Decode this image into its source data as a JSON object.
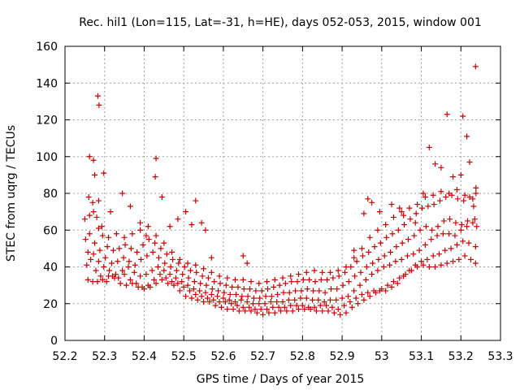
{
  "chart_data": {
    "type": "scatter",
    "title": "Rec. hil1 (Lon=115, Lat=-31, h=HE), days 052-053, 2015, window 001",
    "xlabel": "GPS time / Days of year 2015",
    "ylabel": "STEC from uqrg / TECUs",
    "xlim": [
      52.2,
      53.3
    ],
    "ylim": [
      0,
      160
    ],
    "xticks": [
      "52.2",
      "52.3",
      "52.4",
      "52.5",
      "52.6",
      "52.7",
      "52.8",
      "52.9",
      "53",
      "53.1",
      "53.2",
      "53.3"
    ],
    "yticks": [
      "0",
      "20",
      "40",
      "60",
      "80",
      "100",
      "120",
      "140",
      "160"
    ],
    "grid": true,
    "marker": "+",
    "color": "#cc0000",
    "points": [
      [
        52.258,
        33
      ],
      [
        52.27,
        32
      ],
      [
        52.282,
        32
      ],
      [
        52.295,
        33
      ],
      [
        52.31,
        35
      ],
      [
        52.325,
        34
      ],
      [
        52.34,
        31
      ],
      [
        52.355,
        30
      ],
      [
        52.37,
        31
      ],
      [
        52.385,
        29
      ],
      [
        52.4,
        28
      ],
      [
        52.415,
        29
      ],
      [
        52.43,
        31
      ],
      [
        52.445,
        33
      ],
      [
        52.46,
        31
      ],
      [
        52.475,
        30
      ],
      [
        52.49,
        27
      ],
      [
        52.505,
        24
      ],
      [
        52.52,
        23
      ],
      [
        52.535,
        22
      ],
      [
        52.55,
        21
      ],
      [
        52.565,
        21
      ],
      [
        52.58,
        19
      ],
      [
        52.595,
        18
      ],
      [
        52.61,
        17
      ],
      [
        52.625,
        17
      ],
      [
        52.64,
        16
      ],
      [
        52.655,
        16
      ],
      [
        52.67,
        16
      ],
      [
        52.685,
        15
      ],
      [
        52.7,
        14
      ],
      [
        52.715,
        15
      ],
      [
        52.73,
        15
      ],
      [
        52.745,
        16
      ],
      [
        52.76,
        16
      ],
      [
        52.775,
        16
      ],
      [
        52.79,
        17
      ],
      [
        52.805,
        17
      ],
      [
        52.82,
        17
      ],
      [
        52.835,
        16
      ],
      [
        52.85,
        16
      ],
      [
        52.865,
        16
      ],
      [
        52.88,
        15
      ],
      [
        52.895,
        14
      ],
      [
        52.91,
        15
      ],
      [
        52.925,
        18
      ],
      [
        52.94,
        20
      ],
      [
        52.955,
        22
      ],
      [
        52.97,
        24
      ],
      [
        52.985,
        26
      ],
      [
        53.0,
        28
      ],
      [
        53.015,
        30
      ],
      [
        53.03,
        32
      ],
      [
        53.045,
        34
      ],
      [
        53.06,
        36
      ],
      [
        53.075,
        38
      ],
      [
        53.09,
        40
      ],
      [
        53.105,
        41
      ],
      [
        53.12,
        40
      ],
      [
        53.135,
        40
      ],
      [
        53.15,
        41
      ],
      [
        53.165,
        42
      ],
      [
        53.18,
        43
      ],
      [
        53.195,
        44
      ],
      [
        53.21,
        46
      ],
      [
        53.225,
        44
      ],
      [
        53.237,
        42
      ],
      [
        52.255,
        41
      ],
      [
        52.265,
        44
      ],
      [
        52.278,
        38
      ],
      [
        52.29,
        35
      ],
      [
        52.305,
        32
      ],
      [
        52.32,
        35
      ],
      [
        52.335,
        34
      ],
      [
        52.35,
        36
      ],
      [
        52.365,
        33
      ],
      [
        52.38,
        31
      ],
      [
        52.395,
        29
      ],
      [
        52.41,
        30
      ],
      [
        52.425,
        33
      ],
      [
        52.44,
        36
      ],
      [
        52.455,
        34
      ],
      [
        52.47,
        32
      ],
      [
        52.485,
        31
      ],
      [
        52.5,
        29
      ],
      [
        52.515,
        27
      ],
      [
        52.53,
        25
      ],
      [
        52.545,
        24
      ],
      [
        52.56,
        23
      ],
      [
        52.575,
        22
      ],
      [
        52.59,
        21
      ],
      [
        52.605,
        21
      ],
      [
        52.62,
        20
      ],
      [
        52.635,
        19
      ],
      [
        52.65,
        18
      ],
      [
        52.665,
        18
      ],
      [
        52.68,
        17
      ],
      [
        52.695,
        17
      ],
      [
        52.71,
        17
      ],
      [
        52.725,
        18
      ],
      [
        52.74,
        18
      ],
      [
        52.755,
        18
      ],
      [
        52.77,
        19
      ],
      [
        52.785,
        19
      ],
      [
        52.8,
        19
      ],
      [
        52.815,
        18
      ],
      [
        52.83,
        18
      ],
      [
        52.845,
        19
      ],
      [
        52.86,
        19
      ],
      [
        52.875,
        18
      ],
      [
        52.89,
        17
      ],
      [
        52.905,
        19
      ],
      [
        52.92,
        21
      ],
      [
        52.935,
        23
      ],
      [
        52.95,
        25
      ],
      [
        52.965,
        26
      ],
      [
        52.98,
        27
      ],
      [
        52.995,
        27
      ],
      [
        53.01,
        27
      ],
      [
        53.025,
        29
      ],
      [
        53.04,
        31
      ],
      [
        53.055,
        35
      ],
      [
        53.07,
        38
      ],
      [
        53.085,
        41
      ],
      [
        53.1,
        43
      ],
      [
        53.115,
        44
      ],
      [
        53.13,
        46
      ],
      [
        53.145,
        47
      ],
      [
        53.16,
        49
      ],
      [
        53.175,
        50
      ],
      [
        53.19,
        52
      ],
      [
        53.205,
        54
      ],
      [
        53.22,
        53
      ],
      [
        53.237,
        51
      ],
      [
        52.258,
        48
      ],
      [
        52.272,
        47
      ],
      [
        52.285,
        43
      ],
      [
        52.298,
        40
      ],
      [
        52.312,
        38
      ],
      [
        52.328,
        36
      ],
      [
        52.345,
        38
      ],
      [
        52.36,
        40
      ],
      [
        52.375,
        37
      ],
      [
        52.39,
        35
      ],
      [
        52.405,
        36
      ],
      [
        52.42,
        38
      ],
      [
        52.435,
        40
      ],
      [
        52.45,
        38
      ],
      [
        52.465,
        36
      ],
      [
        52.48,
        34
      ],
      [
        52.495,
        32
      ],
      [
        52.51,
        30
      ],
      [
        52.525,
        28
      ],
      [
        52.54,
        27
      ],
      [
        52.555,
        26
      ],
      [
        52.57,
        25
      ],
      [
        52.585,
        24
      ],
      [
        52.6,
        23
      ],
      [
        52.615,
        22
      ],
      [
        52.63,
        21
      ],
      [
        52.645,
        22
      ],
      [
        52.66,
        21
      ],
      [
        52.675,
        20
      ],
      [
        52.69,
        20
      ],
      [
        52.705,
        20
      ],
      [
        52.72,
        21
      ],
      [
        52.735,
        21
      ],
      [
        52.75,
        21
      ],
      [
        52.765,
        22
      ],
      [
        52.78,
        22
      ],
      [
        52.795,
        23
      ],
      [
        52.81,
        23
      ],
      [
        52.825,
        22
      ],
      [
        52.84,
        22
      ],
      [
        52.855,
        21
      ],
      [
        52.87,
        22
      ],
      [
        52.885,
        22
      ],
      [
        52.9,
        23
      ],
      [
        52.915,
        24
      ],
      [
        52.93,
        27
      ],
      [
        52.945,
        30
      ],
      [
        52.96,
        33
      ],
      [
        52.975,
        36
      ],
      [
        52.99,
        38
      ],
      [
        53.005,
        40
      ],
      [
        53.02,
        41
      ],
      [
        53.035,
        43
      ],
      [
        53.05,
        44
      ],
      [
        53.065,
        46
      ],
      [
        53.08,
        47
      ],
      [
        53.095,
        49
      ],
      [
        53.11,
        52
      ],
      [
        53.125,
        55
      ],
      [
        53.14,
        57
      ],
      [
        53.155,
        58
      ],
      [
        53.17,
        58
      ],
      [
        53.185,
        57
      ],
      [
        53.2,
        60
      ],
      [
        53.215,
        62
      ],
      [
        53.23,
        64
      ],
      [
        53.24,
        62
      ],
      [
        52.252,
        55
      ],
      [
        52.262,
        58
      ],
      [
        52.275,
        53
      ],
      [
        52.288,
        49
      ],
      [
        52.302,
        45
      ],
      [
        52.318,
        42
      ],
      [
        52.333,
        43
      ],
      [
        52.348,
        45
      ],
      [
        52.362,
        43
      ],
      [
        52.377,
        41
      ],
      [
        52.392,
        44
      ],
      [
        52.407,
        46
      ],
      [
        52.422,
        48
      ],
      [
        52.437,
        45
      ],
      [
        52.452,
        42
      ],
      [
        52.467,
        40
      ],
      [
        52.482,
        38
      ],
      [
        52.497,
        36
      ],
      [
        52.512,
        34
      ],
      [
        52.527,
        32
      ],
      [
        52.542,
        31
      ],
      [
        52.557,
        30
      ],
      [
        52.572,
        28
      ],
      [
        52.587,
        27
      ],
      [
        52.602,
        26
      ],
      [
        52.617,
        25
      ],
      [
        52.632,
        25
      ],
      [
        52.647,
        24
      ],
      [
        52.662,
        24
      ],
      [
        52.677,
        23
      ],
      [
        52.692,
        23
      ],
      [
        52.707,
        24
      ],
      [
        52.722,
        24
      ],
      [
        52.737,
        25
      ],
      [
        52.752,
        26
      ],
      [
        52.767,
        26
      ],
      [
        52.782,
        27
      ],
      [
        52.797,
        27
      ],
      [
        52.812,
        28
      ],
      [
        52.827,
        27
      ],
      [
        52.842,
        27
      ],
      [
        52.857,
        26
      ],
      [
        52.872,
        28
      ],
      [
        52.887,
        28
      ],
      [
        52.902,
        30
      ],
      [
        52.917,
        32
      ],
      [
        52.932,
        35
      ],
      [
        52.947,
        37
      ],
      [
        52.962,
        40
      ],
      [
        52.977,
        42
      ],
      [
        52.992,
        44
      ],
      [
        53.007,
        46
      ],
      [
        53.022,
        48
      ],
      [
        53.037,
        51
      ],
      [
        53.052,
        53
      ],
      [
        53.067,
        55
      ],
      [
        53.082,
        57
      ],
      [
        53.097,
        60
      ],
      [
        53.112,
        62
      ],
      [
        53.127,
        60
      ],
      [
        53.142,
        62
      ],
      [
        53.157,
        65
      ],
      [
        53.172,
        66
      ],
      [
        53.187,
        64
      ],
      [
        53.202,
        63
      ],
      [
        53.217,
        65
      ],
      [
        53.235,
        66
      ],
      [
        52.25,
        66
      ],
      [
        52.262,
        68
      ],
      [
        52.272,
        70
      ],
      [
        52.285,
        61
      ],
      [
        52.295,
        57
      ],
      [
        52.307,
        51
      ],
      [
        52.322,
        49
      ],
      [
        52.337,
        50
      ],
      [
        52.352,
        52
      ],
      [
        52.367,
        50
      ],
      [
        52.382,
        48
      ],
      [
        52.397,
        52
      ],
      [
        52.412,
        55
      ],
      [
        52.427,
        53
      ],
      [
        52.442,
        50
      ],
      [
        52.457,
        47
      ],
      [
        52.472,
        44
      ],
      [
        52.487,
        42
      ],
      [
        52.502,
        40
      ],
      [
        52.517,
        38
      ],
      [
        52.532,
        37
      ],
      [
        52.547,
        35
      ],
      [
        52.562,
        34
      ],
      [
        52.577,
        32
      ],
      [
        52.592,
        31
      ],
      [
        52.607,
        30
      ],
      [
        52.622,
        29
      ],
      [
        52.637,
        29
      ],
      [
        52.652,
        28
      ],
      [
        52.667,
        28
      ],
      [
        52.682,
        27
      ],
      [
        52.697,
        27
      ],
      [
        52.712,
        28
      ],
      [
        52.727,
        29
      ],
      [
        52.742,
        30
      ],
      [
        52.757,
        31
      ],
      [
        52.772,
        32
      ],
      [
        52.787,
        32
      ],
      [
        52.802,
        33
      ],
      [
        52.817,
        33
      ],
      [
        52.832,
        32
      ],
      [
        52.847,
        33
      ],
      [
        52.862,
        33
      ],
      [
        52.877,
        34
      ],
      [
        52.892,
        35
      ],
      [
        52.907,
        37
      ],
      [
        52.922,
        40
      ],
      [
        52.937,
        43
      ],
      [
        52.952,
        46
      ],
      [
        52.967,
        48
      ],
      [
        52.982,
        51
      ],
      [
        52.997,
        53
      ],
      [
        53.012,
        56
      ],
      [
        53.027,
        58
      ],
      [
        53.042,
        60
      ],
      [
        53.057,
        63
      ],
      [
        53.072,
        66
      ],
      [
        53.087,
        69
      ],
      [
        53.102,
        72
      ],
      [
        53.117,
        73
      ],
      [
        53.132,
        74
      ],
      [
        53.147,
        76
      ],
      [
        53.162,
        78
      ],
      [
        53.177,
        79
      ],
      [
        53.192,
        77
      ],
      [
        53.207,
        76
      ],
      [
        53.222,
        78
      ],
      [
        53.238,
        80
      ],
      [
        52.26,
        78
      ],
      [
        52.27,
        75
      ],
      [
        52.28,
        67
      ],
      [
        52.293,
        62
      ],
      [
        52.31,
        56
      ],
      [
        52.33,
        58
      ],
      [
        52.35,
        56
      ],
      [
        52.37,
        58
      ],
      [
        52.39,
        60
      ],
      [
        52.41,
        62
      ],
      [
        52.43,
        57
      ],
      [
        52.45,
        53
      ],
      [
        52.47,
        48
      ],
      [
        52.49,
        44
      ],
      [
        52.51,
        42
      ],
      [
        52.53,
        41
      ],
      [
        52.55,
        39
      ],
      [
        52.57,
        37
      ],
      [
        52.59,
        35
      ],
      [
        52.61,
        34
      ],
      [
        52.63,
        33
      ],
      [
        52.65,
        33
      ],
      [
        52.67,
        32
      ],
      [
        52.69,
        31
      ],
      [
        52.71,
        32
      ],
      [
        52.73,
        33
      ],
      [
        52.75,
        34
      ],
      [
        52.77,
        35
      ],
      [
        52.79,
        36
      ],
      [
        52.81,
        37
      ],
      [
        52.83,
        38
      ],
      [
        52.85,
        37
      ],
      [
        52.87,
        37
      ],
      [
        52.89,
        38
      ],
      [
        52.91,
        40
      ],
      [
        52.93,
        45
      ],
      [
        52.95,
        50
      ],
      [
        52.97,
        56
      ],
      [
        52.99,
        60
      ],
      [
        53.01,
        63
      ],
      [
        53.03,
        67
      ],
      [
        53.05,
        70
      ],
      [
        53.07,
        72
      ],
      [
        53.09,
        74
      ],
      [
        53.11,
        78
      ],
      [
        53.13,
        79
      ],
      [
        53.15,
        81
      ],
      [
        53.17,
        80
      ],
      [
        53.19,
        82
      ],
      [
        53.21,
        79
      ],
      [
        53.23,
        77
      ],
      [
        52.262,
        100
      ],
      [
        52.272,
        98
      ],
      [
        52.275,
        90
      ],
      [
        52.285,
        76
      ],
      [
        52.298,
        91
      ],
      [
        52.283,
        133
      ],
      [
        52.286,
        128
      ],
      [
        52.315,
        70
      ],
      [
        52.345,
        80
      ],
      [
        52.365,
        73
      ],
      [
        52.39,
        64
      ],
      [
        52.405,
        57
      ],
      [
        52.428,
        89
      ],
      [
        52.43,
        99
      ],
      [
        52.445,
        78
      ],
      [
        52.465,
        62
      ],
      [
        52.485,
        66
      ],
      [
        52.505,
        70
      ],
      [
        52.52,
        63
      ],
      [
        52.53,
        76
      ],
      [
        52.545,
        64
      ],
      [
        52.555,
        60
      ],
      [
        52.57,
        45
      ],
      [
        52.65,
        46
      ],
      [
        52.66,
        42
      ],
      [
        52.93,
        49
      ],
      [
        52.955,
        69
      ],
      [
        52.965,
        77
      ],
      [
        52.975,
        75
      ],
      [
        52.995,
        70
      ],
      [
        53.025,
        74
      ],
      [
        53.045,
        72
      ],
      [
        53.055,
        68
      ],
      [
        53.085,
        64
      ],
      [
        53.105,
        80
      ],
      [
        53.12,
        105
      ],
      [
        53.135,
        96
      ],
      [
        53.15,
        94
      ],
      [
        53.165,
        123
      ],
      [
        53.18,
        89
      ],
      [
        53.2,
        90
      ],
      [
        53.205,
        122
      ],
      [
        53.215,
        111
      ],
      [
        53.222,
        97
      ],
      [
        53.237,
        149
      ],
      [
        53.238,
        83
      ],
      [
        53.232,
        73
      ]
    ]
  }
}
